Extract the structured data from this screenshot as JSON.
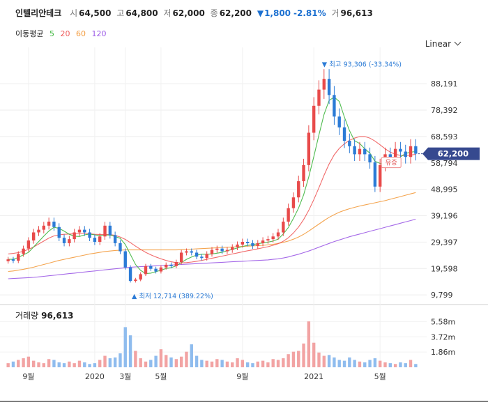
{
  "header": {
    "name": "인텔리안테크",
    "open_label": "시",
    "open": "64,500",
    "high_label": "고",
    "high": "64,800",
    "low_label": "저",
    "low": "62,000",
    "close_label": "종",
    "close": "62,200",
    "change_arrow": "▼",
    "change": "1,800",
    "change_pct": "-2.81%",
    "volume_label": "거",
    "volume": "96,613"
  },
  "ma": {
    "label": "이동평균",
    "periods": [
      {
        "label": "5",
        "color": "#3db53d"
      },
      {
        "label": "20",
        "color": "#ef5a5a"
      },
      {
        "label": "60",
        "color": "#f39a3b"
      },
      {
        "label": "120",
        "color": "#9b59e6"
      }
    ]
  },
  "scale_select": "Linear",
  "volume_panel": {
    "label": "거래량",
    "value": "96,613"
  },
  "colors": {
    "up": "#e84a4a",
    "down": "#2b7bd6",
    "vol_up": "#f2a3a3",
    "vol_down": "#8fbcee",
    "badge": "#36498f"
  },
  "chart_data": {
    "type": "candlestick",
    "y_ticks": [
      "88,191",
      "78,392",
      "68,593",
      "58,794",
      "48,995",
      "39,196",
      "29,397",
      "19,598",
      "9,799"
    ],
    "y_tick_values": [
      88191,
      78392,
      68593,
      58794,
      48995,
      39196,
      29397,
      19598,
      9799
    ],
    "x_ticks": [
      "9월",
      "2020",
      "3월",
      "5월",
      "9월",
      "2021",
      "5월"
    ],
    "volume_ticks": [
      "5.58m",
      "3.72m",
      "1.86m"
    ],
    "volume_tick_values": [
      5.58,
      3.72,
      1.86
    ],
    "current_price": "62,200",
    "current_value": 62200,
    "max_annotation": "▼ 최고 93,306 (-33.34%)",
    "min_annotation": "▲ 최저 12,714 (389.22%)",
    "max_value": 93306,
    "min_value": 12714,
    "suspension_label": "유증",
    "weekly_close": [
      23000,
      22500,
      25000,
      27000,
      30000,
      33000,
      34000,
      35500,
      37000,
      35000,
      31000,
      29000,
      30500,
      33000,
      34000,
      33000,
      31000,
      29500,
      31500,
      35500,
      32000,
      29000,
      26000,
      20000,
      15000,
      15500,
      17500,
      20500,
      19500,
      18500,
      20000,
      21000,
      20500,
      22000,
      25500,
      26000,
      25500,
      24000,
      23500,
      25000,
      26500,
      27000,
      26000,
      26500,
      27500,
      28500,
      29500,
      29000,
      28000,
      29000,
      30000,
      30500,
      31500,
      33000,
      37000,
      42000,
      46000,
      52000,
      58000,
      70000,
      80000,
      86000,
      90000,
      84000,
      76000,
      72000,
      67000,
      65000,
      62000,
      64000,
      62000,
      59000,
      50000,
      58000,
      62000,
      61000,
      64000,
      63000,
      61000,
      65000,
      62200
    ],
    "ma5_weekly": [
      23000,
      23000,
      23700,
      24700,
      25600,
      27600,
      29600,
      31600,
      33500,
      34900,
      34500,
      33500,
      32300,
      31600,
      31500,
      32100,
      32400,
      32100,
      31800,
      32100,
      32000,
      31500,
      30800,
      28500,
      24800,
      21100,
      18900,
      17700,
      17900,
      18400,
      19000,
      19600,
      19900,
      20600,
      21800,
      23000,
      23900,
      24600,
      24900,
      24900,
      25000,
      25300,
      25600,
      26200,
      26700,
      27200,
      27800,
      28200,
      28500,
      28800,
      29100,
      29400,
      29800,
      30500,
      32400,
      34800,
      38200,
      42000,
      47000,
      53600,
      61200,
      69200,
      76800,
      82000,
      83200,
      81600,
      75800,
      70800,
      67000,
      66000,
      64000,
      62400,
      59400,
      58600,
      58200,
      58000,
      59000,
      61000,
      62300,
      62800,
      63000
    ],
    "ma20_weekly": [
      25000,
      25200,
      25500,
      26000,
      26700,
      27600,
      28700,
      29800,
      30900,
      31700,
      32100,
      32300,
      32400,
      32500,
      32600,
      32600,
      32500,
      32300,
      32200,
      32200,
      32200,
      31900,
      31300,
      30400,
      29200,
      27900,
      26700,
      25600,
      24700,
      23900,
      23200,
      22600,
      22100,
      21800,
      21700,
      21800,
      22000,
      22300,
      22600,
      23000,
      23400,
      23800,
      24200,
      24600,
      25000,
      25400,
      25800,
      26200,
      26500,
      26900,
      27300,
      27700,
      28200,
      28800,
      29700,
      31000,
      32800,
      35000,
      37800,
      41200,
      45200,
      49600,
      54200,
      58400,
      61800,
      64200,
      65900,
      67200,
      68000,
      68600,
      68600,
      68000,
      66900,
      65500,
      64000,
      62800,
      62000,
      61600,
      61500,
      61700,
      62000
    ],
    "ma60_weekly": [
      18500,
      18700,
      19000,
      19300,
      19700,
      20100,
      20600,
      21100,
      21600,
      22100,
      22600,
      23000,
      23400,
      23800,
      24200,
      24600,
      25000,
      25300,
      25600,
      25900,
      26100,
      26300,
      26400,
      26500,
      26500,
      26500,
      26500,
      26500,
      26500,
      26500,
      26500,
      26500,
      26500,
      26500,
      26600,
      26700,
      26800,
      26900,
      27000,
      27100,
      27200,
      27300,
      27400,
      27500,
      27600,
      27700,
      27800,
      27900,
      28000,
      28100,
      28200,
      28400,
      28600,
      28900,
      29300,
      29800,
      30500,
      31300,
      32300,
      33500,
      34800,
      36100,
      37400,
      38600,
      39600,
      40500,
      41200,
      41800,
      42300,
      42800,
      43200,
      43600,
      44000,
      44400,
      44800,
      45300,
      45800,
      46300,
      46800,
      47300,
      47800
    ],
    "ma120_weekly": [
      15800,
      15900,
      16000,
      16100,
      16200,
      16300,
      16500,
      16700,
      16900,
      17100,
      17300,
      17500,
      17700,
      17900,
      18100,
      18300,
      18500,
      18700,
      18900,
      19100,
      19300,
      19500,
      19700,
      19900,
      20100,
      20200,
      20300,
      20400,
      20500,
      20600,
      20700,
      20800,
      20900,
      21000,
      21100,
      21200,
      21300,
      21400,
      21500,
      21600,
      21700,
      21800,
      21900,
      22000,
      22100,
      22200,
      22300,
      22400,
      22500,
      22600,
      22700,
      22800,
      23000,
      23200,
      23500,
      23900,
      24400,
      24900,
      25500,
      26100,
      26800,
      27500,
      28200,
      28900,
      29600,
      30200,
      30800,
      31400,
      31900,
      32400,
      32900,
      33400,
      33900,
      34400,
      34900,
      35400,
      35900,
      36400,
      36900,
      37400,
      37900
    ],
    "weekly_volume_m": [
      0.5,
      0.7,
      0.9,
      1.1,
      1.3,
      0.8,
      0.6,
      0.5,
      1.0,
      0.9,
      0.6,
      0.5,
      0.7,
      0.5,
      0.8,
      0.6,
      0.4,
      0.5,
      0.9,
      1.4,
      1.1,
      1.2,
      1.7,
      4.9,
      3.9,
      2.0,
      1.1,
      0.7,
      0.9,
      1.4,
      2.2,
      1.5,
      1.2,
      1.0,
      1.3,
      1.9,
      2.8,
      1.4,
      0.9,
      0.8,
      0.7,
      1.0,
      0.9,
      0.7,
      0.6,
      1.1,
      0.9,
      0.6,
      0.5,
      0.7,
      0.8,
      0.6,
      1.0,
      0.9,
      1.1,
      1.6,
      1.9,
      2.0,
      2.9,
      5.6,
      3.0,
      1.8,
      1.4,
      1.5,
      1.2,
      0.9,
      0.8,
      1.2,
      0.9,
      0.7,
      0.6,
      0.9,
      1.1,
      0.8,
      0.6,
      0.5,
      0.4,
      0.6,
      0.5,
      0.9,
      0.4
    ],
    "price_range": [
      7000,
      96500
    ],
    "volume_range": [
      0,
      7.4
    ]
  }
}
